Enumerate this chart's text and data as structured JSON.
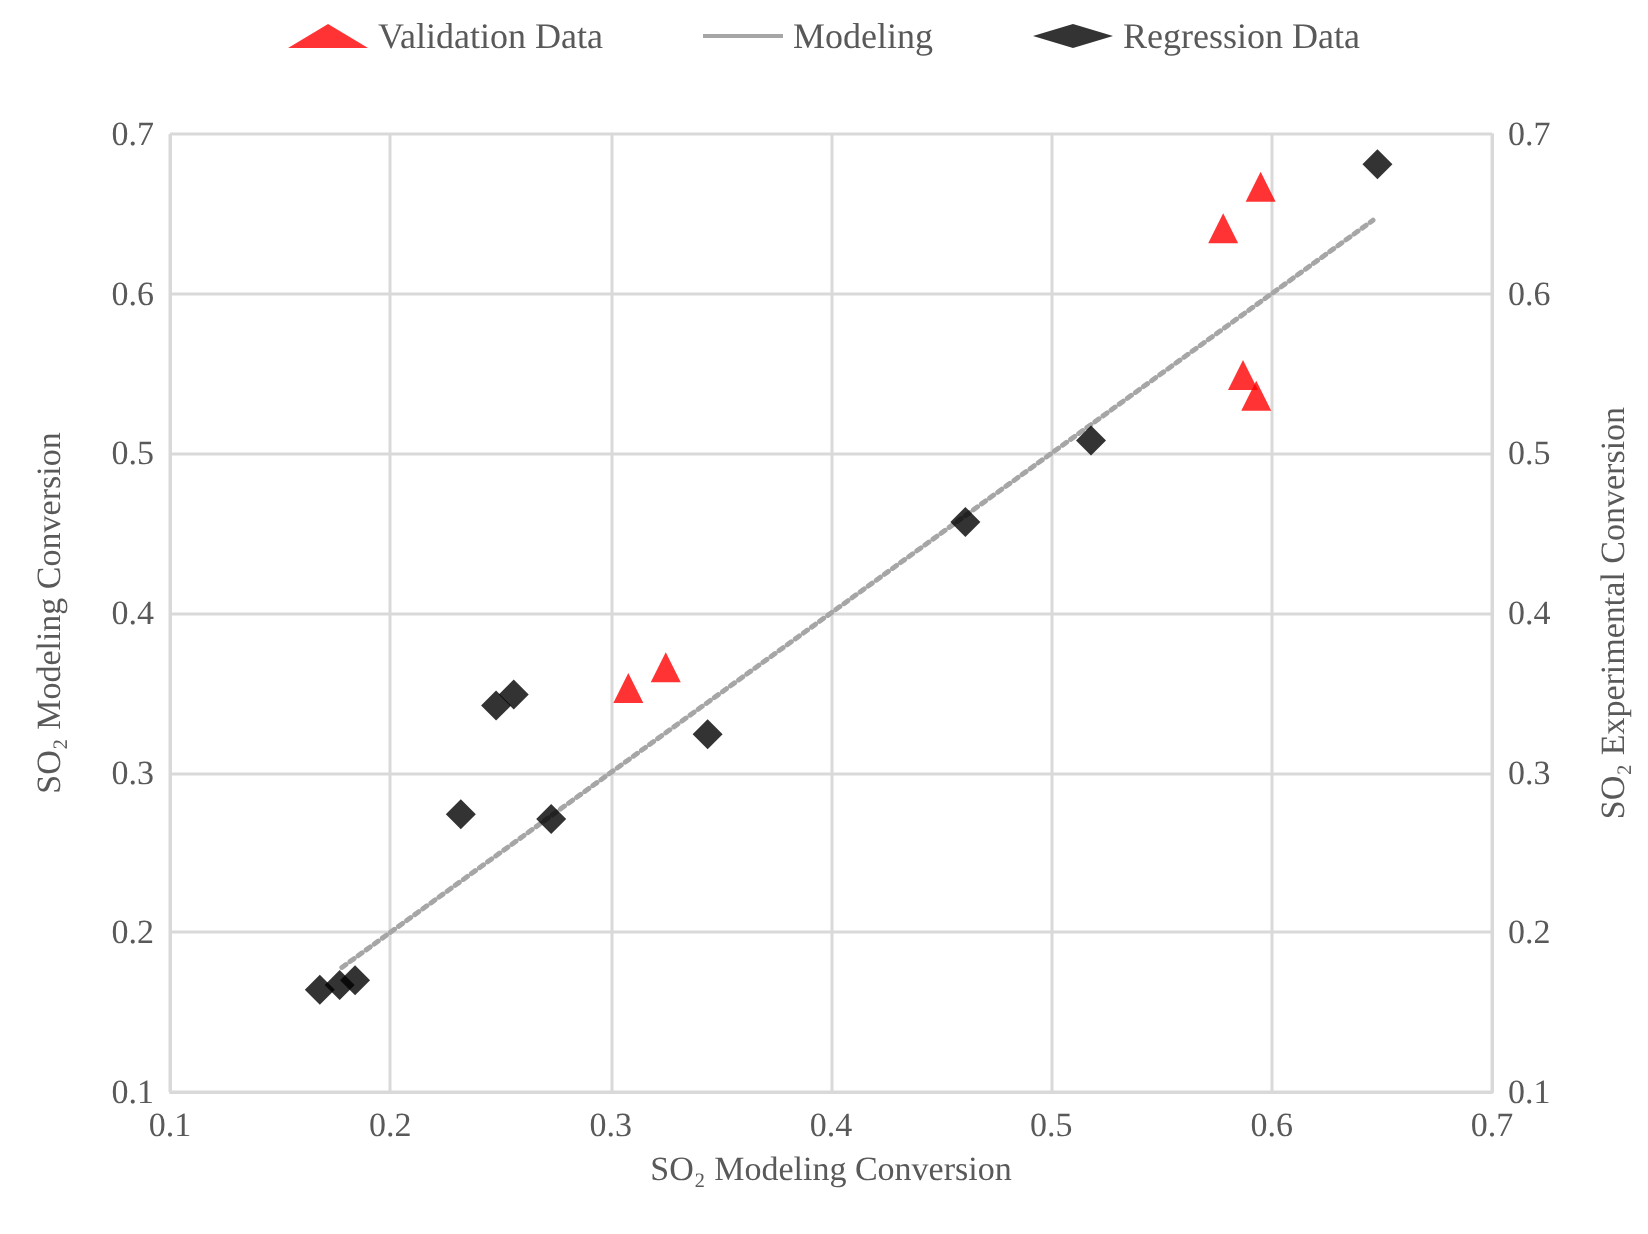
{
  "chart_data": {
    "type": "scatter",
    "xlabel": "SO₂ Modeling Conversion",
    "ylabel": "SO₂ Modeling Conversion",
    "y2label": "SO₂ Experimental Conversion",
    "xlim": [
      0.1,
      0.7
    ],
    "xticks": [
      0.1,
      0.2,
      0.3,
      0.4,
      0.5,
      0.6,
      0.7
    ],
    "ylim": [
      0.1,
      0.7
    ],
    "yticks": [
      0.1,
      0.2,
      0.3,
      0.4,
      0.5,
      0.6,
      0.7
    ],
    "y2lim": [
      0.1,
      0.7
    ],
    "y2ticks": [
      0.1,
      0.2,
      0.3,
      0.4,
      0.5,
      0.6,
      0.7
    ],
    "grid": true,
    "legend": "top",
    "series": [
      {
        "name": "Validation Data",
        "marker": "triangle",
        "color": "#ff0000",
        "x": [
          0.308,
          0.325,
          0.595,
          0.578,
          0.587,
          0.593
        ],
        "values": [
          0.353,
          0.366,
          0.667,
          0.641,
          0.549,
          0.536
        ]
      },
      {
        "name": "Modeling",
        "type": "line",
        "marker": "none",
        "line_style": "dotted",
        "color": "#a6a6a6",
        "x": [
          0.178,
          0.646
        ],
        "values": [
          0.178,
          0.646
        ]
      },
      {
        "name": "Regression Data",
        "marker": "diamond",
        "color": "#000000",
        "x": [
          0.168,
          0.177,
          0.184,
          0.232,
          0.273,
          0.248,
          0.256,
          0.344,
          0.461,
          0.518,
          0.648
        ],
        "values": [
          0.164,
          0.167,
          0.17,
          0.274,
          0.271,
          0.342,
          0.349,
          0.324,
          0.457,
          0.508,
          0.681
        ]
      }
    ]
  }
}
